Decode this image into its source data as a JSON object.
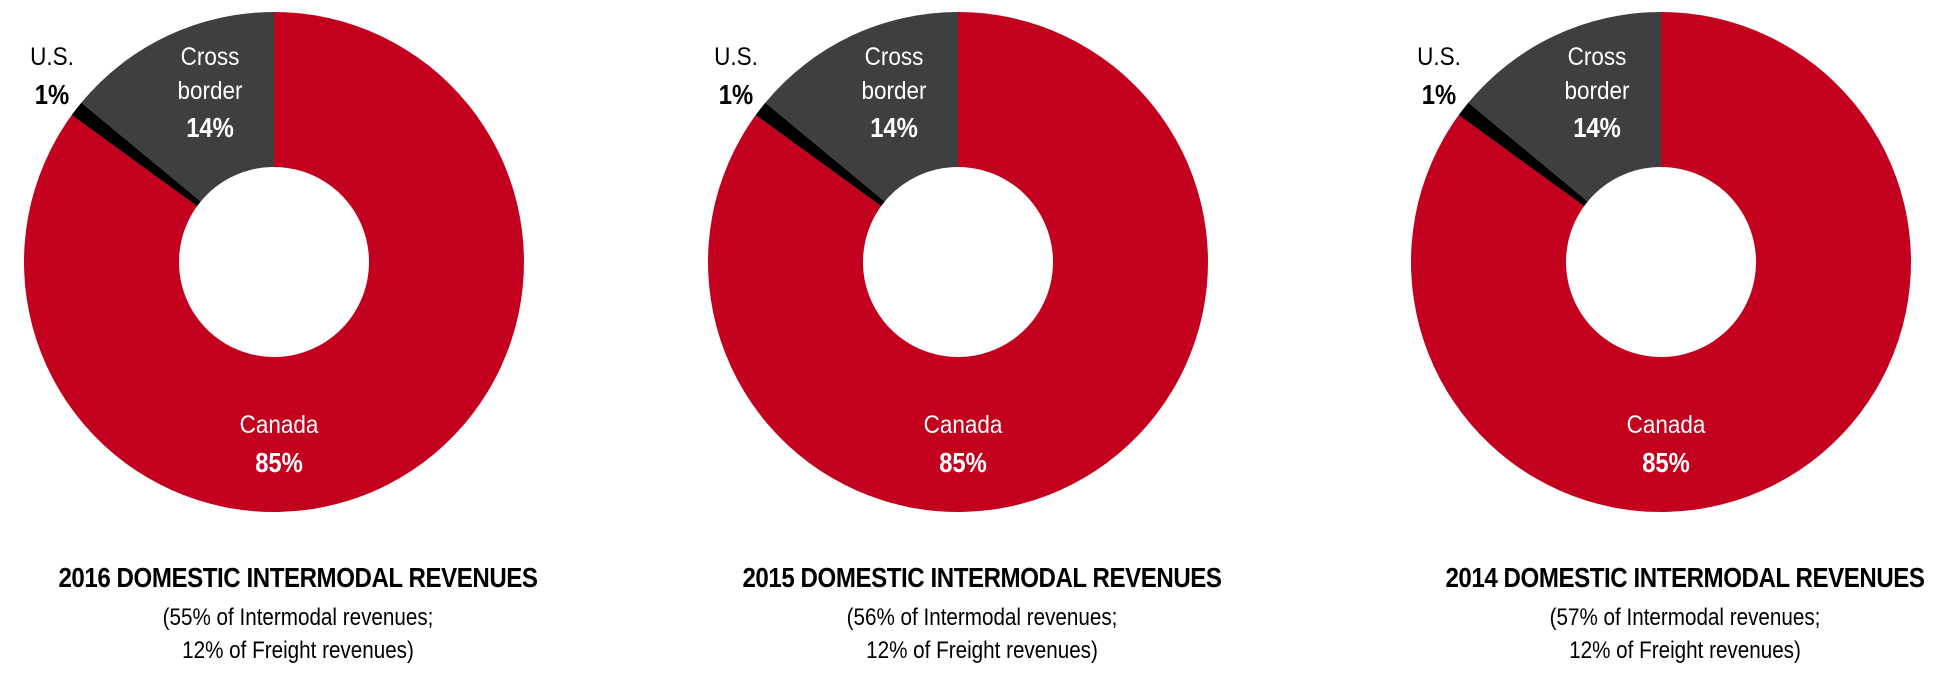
{
  "colors": {
    "canada": "#c4001f",
    "cross_border": "#3f3f3f",
    "us": "#000000",
    "center": "#ffffff"
  },
  "chart_data": [
    {
      "type": "pie",
      "title": "2016 DOMESTIC INTERMODAL REVENUES",
      "subtitle_line1": "(55% of Intermodal revenues;",
      "subtitle_line2": "12% of Freight revenues)",
      "slices": [
        {
          "name": "Canada",
          "value": 85,
          "label": "85%"
        },
        {
          "name": "U.S.",
          "value": 1,
          "label": "1%"
        },
        {
          "name": "Cross border",
          "value": 14,
          "label": "14%"
        }
      ]
    },
    {
      "type": "pie",
      "title": "2015 DOMESTIC INTERMODAL REVENUES",
      "subtitle_line1": "(56% of Intermodal revenues;",
      "subtitle_line2": "12% of Freight revenues)",
      "slices": [
        {
          "name": "Canada",
          "value": 85,
          "label": "85%"
        },
        {
          "name": "U.S.",
          "value": 1,
          "label": "1%"
        },
        {
          "name": "Cross border",
          "value": 14,
          "label": "14%"
        }
      ]
    },
    {
      "type": "pie",
      "title": "2014 DOMESTIC INTERMODAL REVENUES",
      "subtitle_line1": "(57% of Intermodal revenues;",
      "subtitle_line2": "12% of Freight revenues)",
      "slices": [
        {
          "name": "Canada",
          "value": 85,
          "label": "85%"
        },
        {
          "name": "U.S.",
          "value": 1,
          "label": "1%"
        },
        {
          "name": "Cross border",
          "value": 14,
          "label": "14%"
        }
      ]
    }
  ]
}
